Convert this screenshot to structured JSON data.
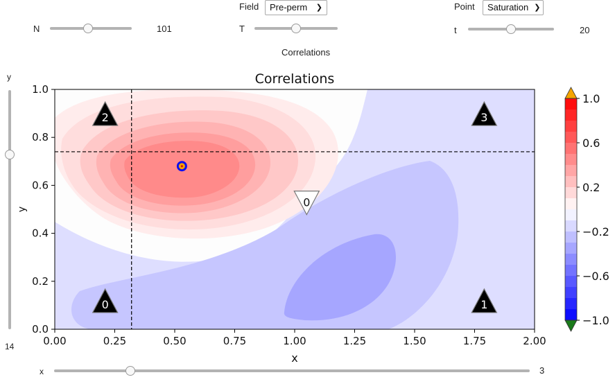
{
  "controls": {
    "field": {
      "label": "Field",
      "selected": "Pre-perm"
    },
    "point": {
      "label": "Point",
      "selected": "Saturation"
    },
    "N": {
      "label": "N",
      "value": "101",
      "fraction": 0.47
    },
    "T": {
      "label": "T",
      "fraction": 0.5
    },
    "t": {
      "label": "t",
      "value": "20",
      "fraction": 0.5
    },
    "y": {
      "label": "y",
      "value": "14",
      "fraction": 0.73
    },
    "x": {
      "label": "x",
      "value": "3",
      "fraction": 0.16
    },
    "widget_title": "Correlations"
  },
  "chart_data": {
    "type": "heatmap",
    "title": "Correlations",
    "xlabel": "x",
    "ylabel": "y",
    "xlim": [
      0,
      2
    ],
    "ylim": [
      0,
      1
    ],
    "xticks": [
      "0.00",
      "0.25",
      "0.50",
      "0.75",
      "1.00",
      "1.25",
      "1.50",
      "1.75",
      "2.00"
    ],
    "yticks": [
      "0.0",
      "0.2",
      "0.4",
      "0.6",
      "0.8",
      "1.0"
    ],
    "colorbar": {
      "range": [
        -1,
        1
      ],
      "ticks": [
        "1.0",
        "0.6",
        "0.2",
        "−0.2",
        "−0.6",
        "−1.0"
      ],
      "over_color": "#f5a500",
      "under_color": "#1a7a1a",
      "cmap": "bwr"
    },
    "crosshair": {
      "x": 0.32,
      "y": 0.74
    },
    "selected_point": {
      "x": 0.53,
      "y": 0.68
    },
    "markers": [
      {
        "label": "2",
        "x": 0.21,
        "y": 0.89,
        "shape": "up-triangle"
      },
      {
        "label": "3",
        "x": 1.79,
        "y": 0.89,
        "shape": "up-triangle"
      },
      {
        "label": "0",
        "x": 0.21,
        "y": 0.11,
        "shape": "up-triangle"
      },
      {
        "label": "1",
        "x": 1.79,
        "y": 0.11,
        "shape": "up-triangle"
      },
      {
        "label": "0",
        "x": 1.05,
        "y": 0.53,
        "shape": "down-triangle"
      }
    ]
  }
}
